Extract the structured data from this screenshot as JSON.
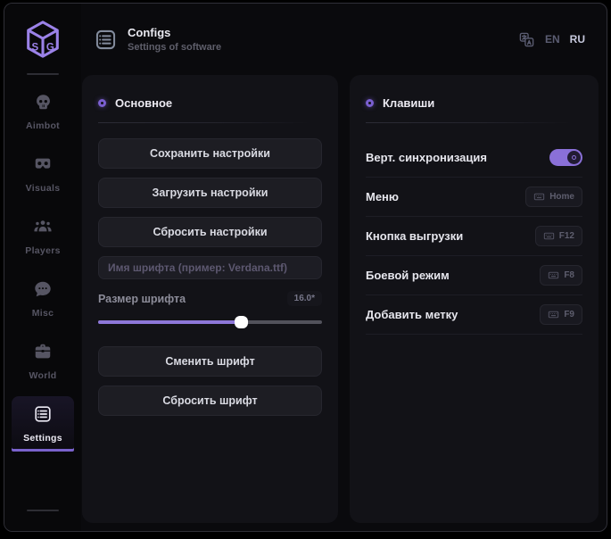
{
  "header": {
    "title": "Configs",
    "subtitle": "Settings of software",
    "lang": {
      "en": "EN",
      "ru": "RU",
      "active": "RU"
    }
  },
  "sidebar": {
    "nav": [
      {
        "label": "Aimbot",
        "icon": "skull-icon",
        "active": false
      },
      {
        "label": "Visuals",
        "icon": "goggles-icon",
        "active": false
      },
      {
        "label": "Players",
        "icon": "players-icon",
        "active": false
      },
      {
        "label": "Misc",
        "icon": "chat-icon",
        "active": false
      },
      {
        "label": "World",
        "icon": "briefcase-icon",
        "active": false
      },
      {
        "label": "Settings",
        "icon": "list-icon",
        "active": true
      }
    ]
  },
  "main_panel": {
    "title": "Основное",
    "buttons_top": [
      "Сохранить настройки",
      "Загрузить настройки",
      "Сбросить настройки"
    ],
    "font_name_placeholder": "Имя шрифта (пример: Verdana.ttf)",
    "font_size_label": "Размер шрифта",
    "font_size_value": "16.0*",
    "slider_percent": 64,
    "buttons_bottom": [
      "Сменить шрифт",
      "Сбросить шрифт"
    ]
  },
  "keys_panel": {
    "title": "Клавиши",
    "rows": [
      {
        "label": "Верт. синхронизация",
        "control": "toggle",
        "state": "on"
      },
      {
        "label": "Меню",
        "control": "key",
        "key": "Home"
      },
      {
        "label": "Кнопка выгрузки",
        "control": "key",
        "key": "F12"
      },
      {
        "label": "Боевой режим",
        "control": "key",
        "key": "F8"
      },
      {
        "label": "Добавить метку",
        "control": "key",
        "key": "F9"
      }
    ]
  },
  "colors": {
    "accent": "#8a70d8",
    "accent_bright": "#9b82e8",
    "window_bg": "#0a0a0d",
    "card_bg": "#121217",
    "control_bg": "#1d1d23",
    "text_primary": "#e8e8ee",
    "text_muted": "#5d5d6c",
    "slider_fill": "#8d77d9",
    "toggle_on": "#8a70d8",
    "knob": "#ffffff"
  }
}
